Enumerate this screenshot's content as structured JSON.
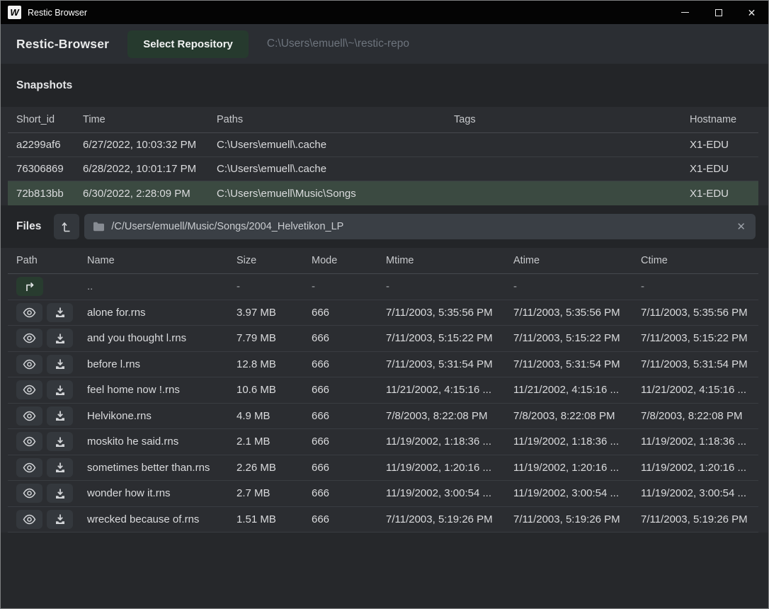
{
  "window": {
    "title": "Restic Browser",
    "app_icon_letter": "W",
    "controls": {
      "minimize": "minimize",
      "maximize": "maximize",
      "close": "✕"
    }
  },
  "toolbar": {
    "app_name": "Restic-Browser",
    "select_repository_label": "Select Repository",
    "repository_path": "C:\\Users\\emuell\\~\\restic-repo"
  },
  "snapshots": {
    "heading": "Snapshots",
    "columns": [
      "Short_id",
      "Time",
      "Paths",
      "Tags",
      "Hostname"
    ],
    "rows": [
      {
        "short_id": "a2299af6",
        "time": "6/27/2022, 10:03:32 PM",
        "paths": "C:\\Users\\emuell\\.cache",
        "tags": "",
        "hostname": "X1-EDU",
        "selected": false
      },
      {
        "short_id": "76306869",
        "time": "6/28/2022, 10:01:17 PM",
        "paths": "C:\\Users\\emuell\\.cache",
        "tags": "",
        "hostname": "X1-EDU",
        "selected": false
      },
      {
        "short_id": "72b813bb",
        "time": "6/30/2022, 2:28:09 PM",
        "paths": "C:\\Users\\emuell\\Music\\Songs",
        "tags": "",
        "hostname": "X1-EDU",
        "selected": true
      }
    ]
  },
  "files": {
    "heading": "Files",
    "path_value": "/C/Users/emuell/Music/Songs/2004_Helvetikon_LP",
    "clear_icon": "✕",
    "columns": [
      "Path",
      "Name",
      "Size",
      "Mode",
      "Mtime",
      "Atime",
      "Ctime"
    ],
    "parent_row": {
      "name": "..",
      "size": "-",
      "mode": "-",
      "mtime": "-",
      "atime": "-",
      "ctime": "-"
    },
    "rows": [
      {
        "name": "alone for.rns",
        "size": "3.97 MB",
        "mode": "666",
        "mtime": "7/11/2003, 5:35:56 PM",
        "atime": "7/11/2003, 5:35:56 PM",
        "ctime": "7/11/2003, 5:35:56 PM"
      },
      {
        "name": "and you thought l.rns",
        "size": "7.79 MB",
        "mode": "666",
        "mtime": "7/11/2003, 5:15:22 PM",
        "atime": "7/11/2003, 5:15:22 PM",
        "ctime": "7/11/2003, 5:15:22 PM"
      },
      {
        "name": "before l.rns",
        "size": "12.8 MB",
        "mode": "666",
        "mtime": "7/11/2003, 5:31:54 PM",
        "atime": "7/11/2003, 5:31:54 PM",
        "ctime": "7/11/2003, 5:31:54 PM"
      },
      {
        "name": "feel home now !.rns",
        "size": "10.6 MB",
        "mode": "666",
        "mtime": "11/21/2002, 4:15:16 ...",
        "atime": "11/21/2002, 4:15:16 ...",
        "ctime": "11/21/2002, 4:15:16 ..."
      },
      {
        "name": "Helvikone.rns",
        "size": "4.9 MB",
        "mode": "666",
        "mtime": "7/8/2003, 8:22:08 PM",
        "atime": "7/8/2003, 8:22:08 PM",
        "ctime": "7/8/2003, 8:22:08 PM"
      },
      {
        "name": "moskito he said.rns",
        "size": "2.1 MB",
        "mode": "666",
        "mtime": "11/19/2002, 1:18:36 ...",
        "atime": "11/19/2002, 1:18:36 ...",
        "ctime": "11/19/2002, 1:18:36 ..."
      },
      {
        "name": "sometimes better than.rns",
        "size": "2.26 MB",
        "mode": "666",
        "mtime": "11/19/2002, 1:20:16 ...",
        "atime": "11/19/2002, 1:20:16 ...",
        "ctime": "11/19/2002, 1:20:16 ..."
      },
      {
        "name": "wonder how it.rns",
        "size": "2.7 MB",
        "mode": "666",
        "mtime": "11/19/2002, 3:00:54 ...",
        "atime": "11/19/2002, 3:00:54 ...",
        "ctime": "11/19/2002, 3:00:54 ..."
      },
      {
        "name": "wrecked because of.rns",
        "size": "1.51 MB",
        "mode": "666",
        "mtime": "7/11/2003, 5:19:26 PM",
        "atime": "7/11/2003, 5:19:26 PM",
        "ctime": "7/11/2003, 5:19:26 PM"
      }
    ]
  },
  "colors": {
    "background": "#26282b",
    "titlebar": "#040404",
    "selected_row_green": "#3b4a41",
    "button_green": "#263a2e",
    "table_background": "#2b2d31",
    "input_background": "#3a3f45"
  }
}
